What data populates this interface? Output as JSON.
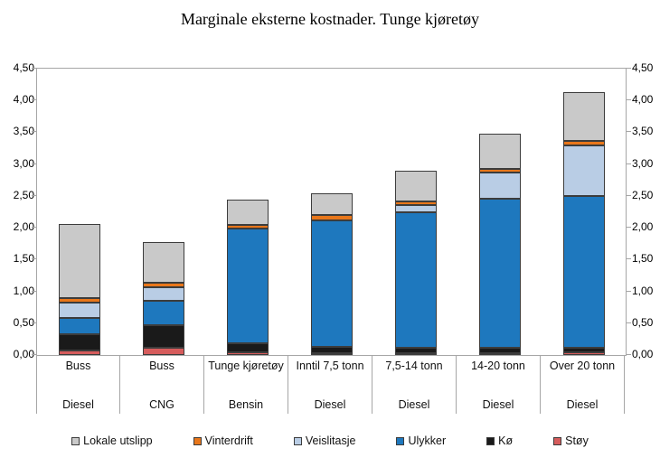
{
  "title": "Marginale eksterne kostnader. Tunge kjøretøy",
  "colors": {
    "axis_line": "#a6a6a6",
    "segment_border": "#3c3c3c"
  },
  "chart_data": {
    "type": "bar",
    "stacked": true,
    "title": "Marginale eksterne kostnader. Tunge kjøretøy",
    "xlabel": "",
    "ylabel": "",
    "ylim": [
      0,
      4.5
    ],
    "ytick_step": 0.5,
    "ytick_labels": [
      "0,00",
      "0,50",
      "1,00",
      "1,50",
      "2,00",
      "2,50",
      "3,00",
      "3,50",
      "4,00",
      "4,50"
    ],
    "grid": false,
    "dual_y_axis": true,
    "legend_position": "bottom",
    "categories": [
      {
        "label": "Buss",
        "fuel": "Diesel"
      },
      {
        "label": "Buss",
        "fuel": "CNG"
      },
      {
        "label": "Tunge kjøretøy",
        "fuel": "Bensin"
      },
      {
        "label": "Inntil 7,5 tonn",
        "fuel": "Diesel"
      },
      {
        "label": "7,5-14 tonn",
        "fuel": "Diesel"
      },
      {
        "label": "14-20 tonn",
        "fuel": "Diesel"
      },
      {
        "label": "Over 20 tonn",
        "fuel": "Diesel"
      }
    ],
    "series": [
      {
        "name": "Støy",
        "color": "#d65c5c",
        "values": [
          0.07,
          0.11,
          0.04,
          0.03,
          0.03,
          0.03,
          0.04
        ]
      },
      {
        "name": "Kø",
        "color": "#1a1a1a",
        "values": [
          0.25,
          0.36,
          0.14,
          0.1,
          0.09,
          0.09,
          0.08
        ]
      },
      {
        "name": "Ulykker",
        "color": "#1e78be",
        "values": [
          0.26,
          0.38,
          1.81,
          1.98,
          2.13,
          2.33,
          2.38
        ]
      },
      {
        "name": "Veislitasje",
        "color": "#b9cde5",
        "values": [
          0.24,
          0.21,
          0.0,
          0.0,
          0.1,
          0.42,
          0.79
        ]
      },
      {
        "name": "Vinterdrift",
        "color": "#e8761a",
        "values": [
          0.07,
          0.07,
          0.06,
          0.09,
          0.07,
          0.06,
          0.07
        ]
      },
      {
        "name": "Lokale utslipp",
        "color": "#c9c9c9",
        "values": [
          1.17,
          0.64,
          0.39,
          0.34,
          0.48,
          0.55,
          0.77
        ]
      }
    ],
    "totals": [
      2.06,
      1.77,
      2.44,
      2.54,
      2.9,
      3.48,
      4.13
    ],
    "legend_order": [
      "Lokale utslipp",
      "Vinterdrift",
      "Veislitasje",
      "Ulykker",
      "Kø",
      "Støy"
    ]
  }
}
